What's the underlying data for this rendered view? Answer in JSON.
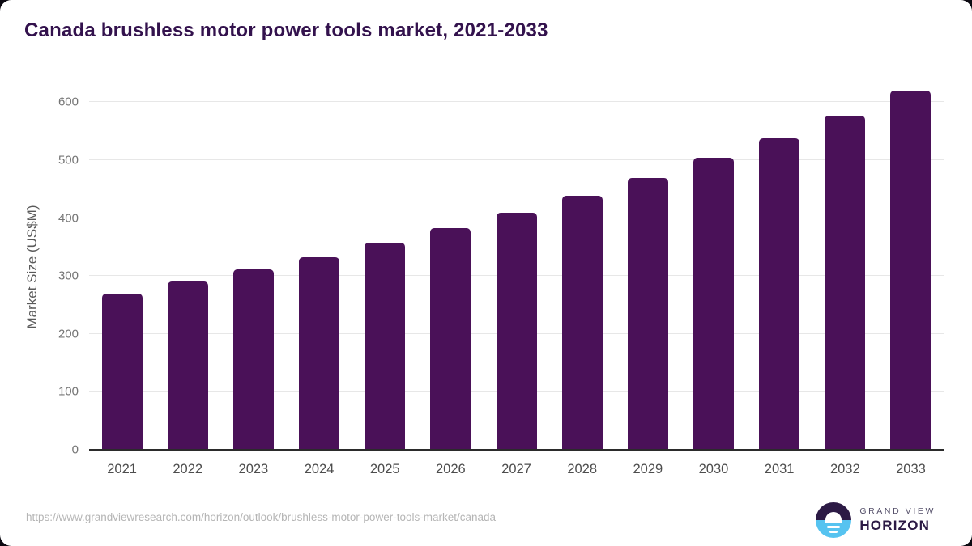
{
  "title": "Canada brushless motor power tools market, 2021-2033",
  "footer": {
    "source_url": "https://www.grandviewresearch.com/horizon/outlook/brushless-motor-power-tools-market/canada"
  },
  "logo": {
    "line1": "GRAND VIEW",
    "line2": "HORIZON"
  },
  "colors": {
    "bar": "#4a1158",
    "title": "#33124d",
    "gridline": "#e7e7e7",
    "axis_line": "#2b2b2b",
    "y_tick": "#757575",
    "x_tick": "#4d4d4d",
    "axis_label": "#5a5a5a",
    "url": "#b5b5b5",
    "logo_dark": "#2c1a45",
    "logo_blue": "#56c3f0"
  },
  "chart_data": {
    "type": "bar",
    "title": "Canada brushless motor power tools market, 2021-2033",
    "categories": [
      "2021",
      "2022",
      "2023",
      "2024",
      "2025",
      "2026",
      "2027",
      "2028",
      "2029",
      "2030",
      "2031",
      "2032",
      "2033"
    ],
    "values": [
      270,
      290,
      311,
      333,
      357,
      383,
      410,
      438,
      470,
      504,
      538,
      577,
      620
    ],
    "xlabel": "",
    "ylabel": "Market Size (US$M)",
    "ylim": [
      0,
      630
    ],
    "yticks": [
      0,
      100,
      200,
      300,
      400,
      500,
      600
    ],
    "grid": true,
    "legend": false,
    "bar_color": "#4a1158"
  }
}
